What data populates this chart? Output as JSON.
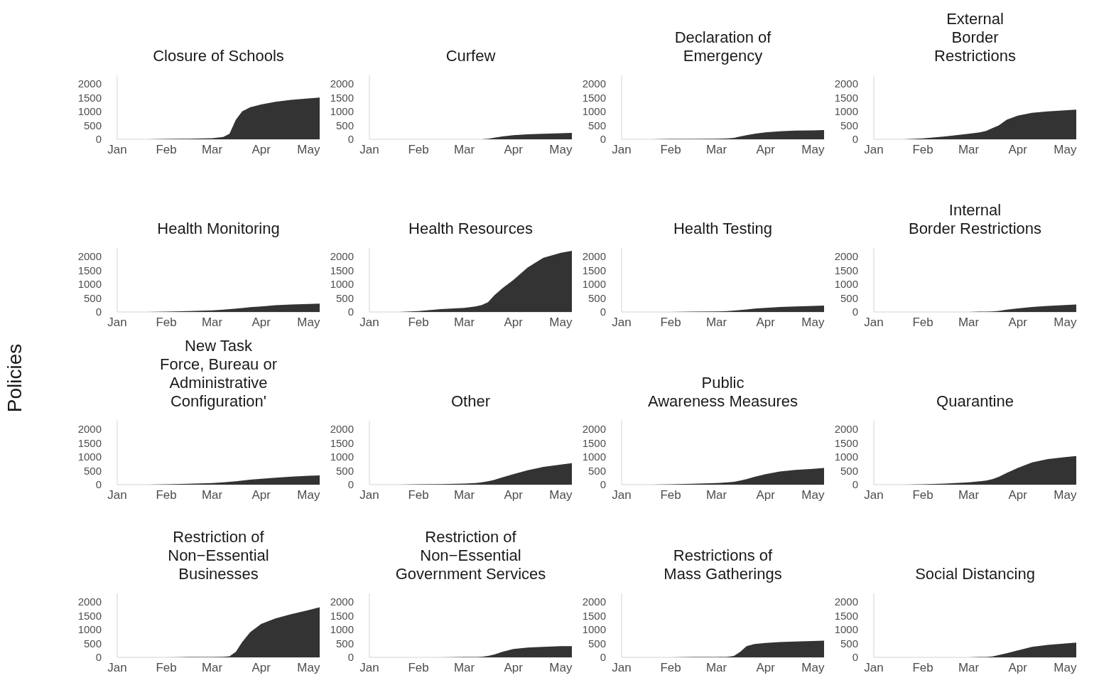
{
  "chart_data": [
    {
      "type": "area",
      "title": "Closure of Schools",
      "x": [
        "--01-20",
        "--02-01",
        "--02-15",
        "--03-01",
        "--03-08",
        "--03-12",
        "--03-16",
        "--03-20",
        "--03-25",
        "--04-01",
        "--04-10",
        "--04-20",
        "--05-01",
        "--05-08"
      ],
      "series": [
        {
          "color": "#333333",
          "values": [
            0,
            10,
            20,
            40,
            80,
            200,
            700,
            1000,
            1150,
            1250,
            1350,
            1420,
            1470,
            1500
          ]
        }
      ],
      "xlim": [
        "--01-01",
        "--05-08"
      ],
      "ylim": [
        0,
        2300
      ],
      "xticks": [
        {
          "value": "--01-01",
          "label": "Jan"
        },
        {
          "value": "--02-01",
          "label": "Feb"
        },
        {
          "value": "--03-01",
          "label": "Mar"
        },
        {
          "value": "--04-01",
          "label": "Apr"
        },
        {
          "value": "--05-01",
          "label": "May"
        }
      ],
      "yticks": [
        0,
        500,
        1000,
        1500,
        2000
      ]
    },
    {
      "type": "area",
      "title": "Curfew",
      "x": [
        "--01-20",
        "--02-01",
        "--02-15",
        "--03-01",
        "--03-08",
        "--03-12",
        "--03-16",
        "--03-20",
        "--03-25",
        "--04-01",
        "--04-10",
        "--04-20",
        "--05-01",
        "--05-08"
      ],
      "series": [
        {
          "color": "#333333",
          "values": [
            0,
            0,
            0,
            0,
            0,
            0,
            20,
            60,
            100,
            150,
            180,
            200,
            220,
            230
          ]
        }
      ],
      "xlim": [
        "--01-01",
        "--05-08"
      ],
      "ylim": [
        0,
        2300
      ],
      "xticks": [
        {
          "value": "--01-01",
          "label": "Jan"
        },
        {
          "value": "--02-01",
          "label": "Feb"
        },
        {
          "value": "--03-01",
          "label": "Mar"
        },
        {
          "value": "--04-01",
          "label": "Apr"
        },
        {
          "value": "--05-01",
          "label": "May"
        }
      ],
      "yticks": [
        0,
        500,
        1000,
        1500,
        2000
      ]
    },
    {
      "type": "area",
      "title": "Declaration of\nEmergency",
      "x": [
        "--01-20",
        "--02-01",
        "--02-15",
        "--03-01",
        "--03-08",
        "--03-12",
        "--03-16",
        "--03-20",
        "--03-25",
        "--04-01",
        "--04-10",
        "--04-20",
        "--05-01",
        "--05-08"
      ],
      "series": [
        {
          "color": "#333333",
          "values": [
            0,
            10,
            10,
            20,
            30,
            50,
            100,
            150,
            200,
            250,
            290,
            310,
            320,
            330
          ]
        }
      ],
      "xlim": [
        "--01-01",
        "--05-08"
      ],
      "ylim": [
        0,
        2300
      ],
      "xticks": [
        {
          "value": "--01-01",
          "label": "Jan"
        },
        {
          "value": "--02-01",
          "label": "Feb"
        },
        {
          "value": "--03-01",
          "label": "Mar"
        },
        {
          "value": "--04-01",
          "label": "Apr"
        },
        {
          "value": "--05-01",
          "label": "May"
        }
      ],
      "yticks": [
        0,
        500,
        1000,
        1500,
        2000
      ]
    },
    {
      "type": "area",
      "title": "External\nBorder\nRestrictions",
      "x": [
        "--01-20",
        "--02-01",
        "--02-15",
        "--03-01",
        "--03-08",
        "--03-12",
        "--03-16",
        "--03-20",
        "--03-25",
        "--04-01",
        "--04-10",
        "--04-20",
        "--05-01",
        "--05-08"
      ],
      "series": [
        {
          "color": "#333333",
          "values": [
            0,
            30,
            100,
            200,
            250,
            300,
            400,
            500,
            700,
            850,
            950,
            1000,
            1040,
            1070
          ]
        }
      ],
      "xlim": [
        "--01-01",
        "--05-08"
      ],
      "ylim": [
        0,
        2300
      ],
      "xticks": [
        {
          "value": "--01-01",
          "label": "Jan"
        },
        {
          "value": "--02-01",
          "label": "Feb"
        },
        {
          "value": "--03-01",
          "label": "Mar"
        },
        {
          "value": "--04-01",
          "label": "Apr"
        },
        {
          "value": "--05-01",
          "label": "May"
        }
      ],
      "yticks": [
        0,
        500,
        1000,
        1500,
        2000
      ]
    },
    {
      "type": "area",
      "title": "Health Monitoring",
      "x": [
        "--01-20",
        "--02-01",
        "--02-15",
        "--03-01",
        "--03-08",
        "--03-12",
        "--03-16",
        "--03-20",
        "--03-25",
        "--04-01",
        "--04-10",
        "--04-20",
        "--05-01",
        "--05-08"
      ],
      "series": [
        {
          "color": "#333333",
          "values": [
            0,
            10,
            30,
            60,
            80,
            100,
            120,
            140,
            170,
            200,
            240,
            270,
            290,
            300
          ]
        }
      ],
      "xlim": [
        "--01-01",
        "--05-08"
      ],
      "ylim": [
        0,
        2300
      ],
      "xticks": [
        {
          "value": "--01-01",
          "label": "Jan"
        },
        {
          "value": "--02-01",
          "label": "Feb"
        },
        {
          "value": "--03-01",
          "label": "Mar"
        },
        {
          "value": "--04-01",
          "label": "Apr"
        },
        {
          "value": "--05-01",
          "label": "May"
        }
      ],
      "yticks": [
        0,
        500,
        1000,
        1500,
        2000
      ]
    },
    {
      "type": "area",
      "title": "Health Resources",
      "x": [
        "--01-20",
        "--02-01",
        "--02-15",
        "--03-01",
        "--03-08",
        "--03-12",
        "--03-16",
        "--03-20",
        "--03-25",
        "--04-01",
        "--04-10",
        "--04-20",
        "--05-01",
        "--05-08"
      ],
      "series": [
        {
          "color": "#333333",
          "values": [
            0,
            30,
            100,
            150,
            200,
            250,
            350,
            600,
            850,
            1150,
            1600,
            1950,
            2130,
            2200
          ]
        }
      ],
      "xlim": [
        "--01-01",
        "--05-08"
      ],
      "ylim": [
        0,
        2300
      ],
      "xticks": [
        {
          "value": "--01-01",
          "label": "Jan"
        },
        {
          "value": "--02-01",
          "label": "Feb"
        },
        {
          "value": "--03-01",
          "label": "Mar"
        },
        {
          "value": "--04-01",
          "label": "Apr"
        },
        {
          "value": "--05-01",
          "label": "May"
        }
      ],
      "yticks": [
        0,
        500,
        1000,
        1500,
        2000
      ]
    },
    {
      "type": "area",
      "title": "Health Testing",
      "x": [
        "--01-20",
        "--02-01",
        "--02-15",
        "--03-01",
        "--03-08",
        "--03-12",
        "--03-16",
        "--03-20",
        "--03-25",
        "--04-01",
        "--04-10",
        "--04-20",
        "--05-01",
        "--05-08"
      ],
      "series": [
        {
          "color": "#333333",
          "values": [
            0,
            0,
            10,
            20,
            30,
            50,
            70,
            90,
            120,
            150,
            180,
            200,
            220,
            230
          ]
        }
      ],
      "xlim": [
        "--01-01",
        "--05-08"
      ],
      "ylim": [
        0,
        2300
      ],
      "xticks": [
        {
          "value": "--01-01",
          "label": "Jan"
        },
        {
          "value": "--02-01",
          "label": "Feb"
        },
        {
          "value": "--03-01",
          "label": "Mar"
        },
        {
          "value": "--04-01",
          "label": "Apr"
        },
        {
          "value": "--05-01",
          "label": "May"
        }
      ],
      "yticks": [
        0,
        500,
        1000,
        1500,
        2000
      ]
    },
    {
      "type": "area",
      "title": "Internal\nBorder Restrictions",
      "x": [
        "--01-20",
        "--02-01",
        "--02-15",
        "--03-01",
        "--03-08",
        "--03-12",
        "--03-16",
        "--03-20",
        "--03-25",
        "--04-01",
        "--04-10",
        "--04-20",
        "--05-01",
        "--05-08"
      ],
      "series": [
        {
          "color": "#333333",
          "values": [
            0,
            0,
            0,
            0,
            10,
            10,
            20,
            40,
            80,
            130,
            180,
            220,
            250,
            270
          ]
        }
      ],
      "xlim": [
        "--01-01",
        "--05-08"
      ],
      "ylim": [
        0,
        2300
      ],
      "xticks": [
        {
          "value": "--01-01",
          "label": "Jan"
        },
        {
          "value": "--02-01",
          "label": "Feb"
        },
        {
          "value": "--03-01",
          "label": "Mar"
        },
        {
          "value": "--04-01",
          "label": "Apr"
        },
        {
          "value": "--05-01",
          "label": "May"
        }
      ],
      "yticks": [
        0,
        500,
        1000,
        1500,
        2000
      ]
    },
    {
      "type": "area",
      "title": "New Task\nForce, Bureau or\nAdministrative\nConfiguration'",
      "ylabel": "Policies",
      "x": [
        "--01-20",
        "--02-01",
        "--02-15",
        "--03-01",
        "--03-08",
        "--03-12",
        "--03-16",
        "--03-20",
        "--03-25",
        "--04-01",
        "--04-10",
        "--04-20",
        "--05-01",
        "--05-08"
      ],
      "series": [
        {
          "color": "#333333",
          "values": [
            0,
            10,
            30,
            60,
            80,
            100,
            120,
            150,
            180,
            210,
            250,
            290,
            320,
            330
          ]
        }
      ],
      "xlim": [
        "--01-01",
        "--05-08"
      ],
      "ylim": [
        0,
        2300
      ],
      "xticks": [
        {
          "value": "--01-01",
          "label": "Jan"
        },
        {
          "value": "--02-01",
          "label": "Feb"
        },
        {
          "value": "--03-01",
          "label": "Mar"
        },
        {
          "value": "--04-01",
          "label": "Apr"
        },
        {
          "value": "--05-01",
          "label": "May"
        }
      ],
      "yticks": [
        0,
        500,
        1000,
        1500,
        2000
      ]
    },
    {
      "type": "area",
      "title": "Other",
      "x": [
        "--01-20",
        "--02-01",
        "--02-15",
        "--03-01",
        "--03-08",
        "--03-12",
        "--03-16",
        "--03-20",
        "--03-25",
        "--04-01",
        "--04-10",
        "--04-20",
        "--05-01",
        "--05-08"
      ],
      "series": [
        {
          "color": "#333333",
          "values": [
            0,
            10,
            20,
            40,
            60,
            80,
            120,
            170,
            260,
            380,
            520,
            640,
            720,
            770
          ]
        }
      ],
      "xlim": [
        "--01-01",
        "--05-08"
      ],
      "ylim": [
        0,
        2300
      ],
      "xticks": [
        {
          "value": "--01-01",
          "label": "Jan"
        },
        {
          "value": "--02-01",
          "label": "Feb"
        },
        {
          "value": "--03-01",
          "label": "Mar"
        },
        {
          "value": "--04-01",
          "label": "Apr"
        },
        {
          "value": "--05-01",
          "label": "May"
        }
      ],
      "yticks": [
        0,
        500,
        1000,
        1500,
        2000
      ]
    },
    {
      "type": "area",
      "title": "Public\nAwareness Measures",
      "x": [
        "--01-20",
        "--02-01",
        "--02-15",
        "--03-01",
        "--03-08",
        "--03-12",
        "--03-16",
        "--03-20",
        "--03-25",
        "--04-01",
        "--04-10",
        "--04-20",
        "--05-01",
        "--05-08"
      ],
      "series": [
        {
          "color": "#333333",
          "values": [
            0,
            10,
            30,
            60,
            80,
            100,
            150,
            200,
            280,
            380,
            470,
            530,
            570,
            600
          ]
        }
      ],
      "xlim": [
        "--01-01",
        "--05-08"
      ],
      "ylim": [
        0,
        2300
      ],
      "xticks": [
        {
          "value": "--01-01",
          "label": "Jan"
        },
        {
          "value": "--02-01",
          "label": "Feb"
        },
        {
          "value": "--03-01",
          "label": "Mar"
        },
        {
          "value": "--04-01",
          "label": "Apr"
        },
        {
          "value": "--05-01",
          "label": "May"
        }
      ],
      "yticks": [
        0,
        500,
        1000,
        1500,
        2000
      ]
    },
    {
      "type": "area",
      "title": "Quarantine",
      "x": [
        "--01-20",
        "--02-01",
        "--02-15",
        "--03-01",
        "--03-08",
        "--03-12",
        "--03-16",
        "--03-20",
        "--03-25",
        "--04-01",
        "--04-10",
        "--04-20",
        "--05-01",
        "--05-08"
      ],
      "series": [
        {
          "color": "#333333",
          "values": [
            0,
            10,
            40,
            80,
            120,
            150,
            200,
            280,
            420,
            600,
            800,
            920,
            990,
            1030
          ]
        }
      ],
      "xlim": [
        "--01-01",
        "--05-08"
      ],
      "ylim": [
        0,
        2300
      ],
      "xticks": [
        {
          "value": "--01-01",
          "label": "Jan"
        },
        {
          "value": "--02-01",
          "label": "Feb"
        },
        {
          "value": "--03-01",
          "label": "Mar"
        },
        {
          "value": "--04-01",
          "label": "Apr"
        },
        {
          "value": "--05-01",
          "label": "May"
        }
      ],
      "yticks": [
        0,
        500,
        1000,
        1500,
        2000
      ]
    },
    {
      "type": "area",
      "title": "Restriction of\nNon−Essential\nBusinesses",
      "x": [
        "--01-20",
        "--02-01",
        "--02-15",
        "--03-01",
        "--03-08",
        "--03-12",
        "--03-16",
        "--03-20",
        "--03-25",
        "--04-01",
        "--04-10",
        "--04-20",
        "--05-01",
        "--05-08"
      ],
      "series": [
        {
          "color": "#333333",
          "values": [
            0,
            0,
            10,
            10,
            20,
            40,
            200,
            550,
            900,
            1200,
            1400,
            1550,
            1700,
            1800
          ]
        }
      ],
      "xlim": [
        "--01-01",
        "--05-08"
      ],
      "ylim": [
        0,
        2300
      ],
      "xticks": [
        {
          "value": "--01-01",
          "label": "Jan"
        },
        {
          "value": "--02-01",
          "label": "Feb"
        },
        {
          "value": "--03-01",
          "label": "Mar"
        },
        {
          "value": "--04-01",
          "label": "Apr"
        },
        {
          "value": "--05-01",
          "label": "May"
        }
      ],
      "yticks": [
        0,
        500,
        1000,
        1500,
        2000
      ]
    },
    {
      "type": "area",
      "title": "Restriction of\nNon−Essential\nGovernment Services",
      "x": [
        "--01-20",
        "--02-01",
        "--02-15",
        "--03-01",
        "--03-08",
        "--03-12",
        "--03-16",
        "--03-20",
        "--03-25",
        "--04-01",
        "--04-10",
        "--04-20",
        "--05-01",
        "--05-08"
      ],
      "series": [
        {
          "color": "#333333",
          "values": [
            0,
            0,
            0,
            10,
            10,
            20,
            50,
            100,
            200,
            300,
            350,
            380,
            400,
            400
          ]
        }
      ],
      "xlim": [
        "--01-01",
        "--05-08"
      ],
      "ylim": [
        0,
        2300
      ],
      "xticks": [
        {
          "value": "--01-01",
          "label": "Jan"
        },
        {
          "value": "--02-01",
          "label": "Feb"
        },
        {
          "value": "--03-01",
          "label": "Mar"
        },
        {
          "value": "--04-01",
          "label": "Apr"
        },
        {
          "value": "--05-01",
          "label": "May"
        }
      ],
      "yticks": [
        0,
        500,
        1000,
        1500,
        2000
      ]
    },
    {
      "type": "area",
      "title": "Restrictions of\nMass Gatherings",
      "x": [
        "--01-20",
        "--02-01",
        "--02-15",
        "--03-01",
        "--03-08",
        "--03-12",
        "--03-16",
        "--03-20",
        "--03-25",
        "--04-01",
        "--04-10",
        "--04-20",
        "--05-01",
        "--05-08"
      ],
      "series": [
        {
          "color": "#333333",
          "values": [
            0,
            0,
            10,
            10,
            20,
            50,
            200,
            400,
            480,
            520,
            550,
            570,
            590,
            600
          ]
        }
      ],
      "xlim": [
        "--01-01",
        "--05-08"
      ],
      "ylim": [
        0,
        2300
      ],
      "xticks": [
        {
          "value": "--01-01",
          "label": "Jan"
        },
        {
          "value": "--02-01",
          "label": "Feb"
        },
        {
          "value": "--03-01",
          "label": "Mar"
        },
        {
          "value": "--04-01",
          "label": "Apr"
        },
        {
          "value": "--05-01",
          "label": "May"
        }
      ],
      "yticks": [
        0,
        500,
        1000,
        1500,
        2000
      ]
    },
    {
      "type": "area",
      "title": "Social Distancing",
      "x": [
        "--01-20",
        "--02-01",
        "--02-15",
        "--03-01",
        "--03-08",
        "--03-12",
        "--03-16",
        "--03-20",
        "--03-25",
        "--04-01",
        "--04-10",
        "--04-20",
        "--05-01",
        "--05-08"
      ],
      "series": [
        {
          "color": "#333333",
          "values": [
            0,
            0,
            0,
            0,
            10,
            10,
            30,
            80,
            150,
            250,
            380,
            450,
            500,
            530
          ]
        }
      ],
      "xlim": [
        "--01-01",
        "--05-08"
      ],
      "ylim": [
        0,
        2300
      ],
      "xticks": [
        {
          "value": "--01-01",
          "label": "Jan"
        },
        {
          "value": "--02-01",
          "label": "Feb"
        },
        {
          "value": "--03-01",
          "label": "Mar"
        },
        {
          "value": "--04-01",
          "label": "Apr"
        },
        {
          "value": "--05-01",
          "label": "May"
        }
      ],
      "yticks": [
        0,
        500,
        1000,
        1500,
        2000
      ]
    }
  ]
}
